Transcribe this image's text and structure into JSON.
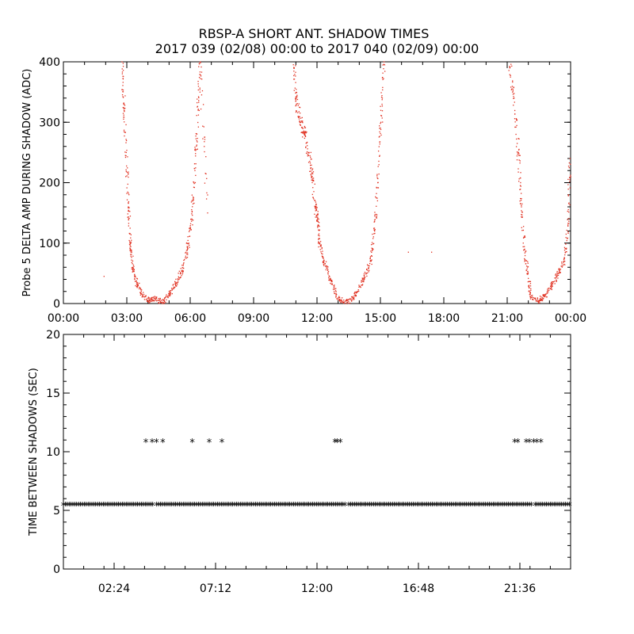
{
  "title_line1": "RBSP-A SHORT ANT. SHADOW TIMES",
  "title_line2": "2017 039 (02/08) 00:00 to 2017 040 (02/09) 00:00",
  "colors": {
    "top_series": "#e03020",
    "bottom_series": "#000000",
    "axis": "#000000"
  },
  "chart_data": [
    {
      "type": "scatter",
      "ylabel": "Probe 5 DELTA AMP DURING SHADOW (ADC)",
      "xlabel": "",
      "xlim_hours": [
        0,
        24
      ],
      "ylim": [
        0,
        400
      ],
      "x_tick_hours": [
        0,
        3,
        6,
        9,
        12,
        15,
        18,
        21,
        24
      ],
      "x_tick_labels": [
        "00:00",
        "03:00",
        "06:00",
        "09:00",
        "12:00",
        "15:00",
        "18:00",
        "21:00",
        "00:00"
      ],
      "y_ticks": [
        0,
        100,
        200,
        300,
        400
      ],
      "y_tick_labels": [
        "0",
        "100",
        "200",
        "300",
        "400"
      ],
      "series_color": "#e03020",
      "description": "Red point clouds forming U-shaped dips during eclipse passes",
      "points_sampled": [
        [
          1.9,
          45
        ],
        [
          2.75,
          400
        ],
        [
          2.85,
          330
        ],
        [
          2.95,
          250
        ],
        [
          3.05,
          160
        ],
        [
          3.15,
          100
        ],
        [
          3.25,
          60
        ],
        [
          3.45,
          35
        ],
        [
          3.7,
          15
        ],
        [
          4.05,
          5
        ],
        [
          4.3,
          8
        ],
        [
          4.7,
          2
        ],
        [
          5.0,
          15
        ],
        [
          5.3,
          35
        ],
        [
          5.6,
          55
        ],
        [
          5.85,
          90
        ],
        [
          6.05,
          140
        ],
        [
          6.2,
          220
        ],
        [
          6.35,
          320
        ],
        [
          6.45,
          400
        ],
        [
          6.8,
          150
        ],
        [
          10.9,
          390
        ],
        [
          11.0,
          330
        ],
        [
          11.2,
          300
        ],
        [
          11.4,
          280
        ],
        [
          11.6,
          250
        ],
        [
          11.75,
          210
        ],
        [
          11.9,
          160
        ],
        [
          12.0,
          140
        ],
        [
          12.1,
          100
        ],
        [
          12.3,
          70
        ],
        [
          12.6,
          40
        ],
        [
          12.9,
          15
        ],
        [
          13.2,
          2
        ],
        [
          13.6,
          5
        ],
        [
          13.9,
          20
        ],
        [
          14.2,
          40
        ],
        [
          14.5,
          70
        ],
        [
          14.7,
          120
        ],
        [
          14.85,
          200
        ],
        [
          15.0,
          300
        ],
        [
          15.15,
          400
        ],
        [
          16.3,
          85
        ],
        [
          17.4,
          85
        ],
        [
          21.1,
          390
        ],
        [
          21.3,
          340
        ],
        [
          21.5,
          250
        ],
        [
          21.65,
          160
        ],
        [
          21.8,
          90
        ],
        [
          21.95,
          50
        ],
        [
          22.1,
          10
        ],
        [
          22.5,
          5
        ],
        [
          22.8,
          15
        ],
        [
          23.1,
          30
        ],
        [
          23.4,
          50
        ],
        [
          23.7,
          70
        ],
        [
          23.85,
          130
        ],
        [
          23.95,
          240
        ]
      ]
    },
    {
      "type": "scatter",
      "ylabel": "TIME BETWEEN SHADOWS (SEC)",
      "xlabel": "",
      "xlim_hours": [
        0,
        24
      ],
      "ylim": [
        0,
        20
      ],
      "x_tick_hours": [
        2.4,
        7.2,
        12.0,
        16.8,
        21.6
      ],
      "x_tick_labels": [
        "02:24",
        "07:12",
        "12:00",
        "16:48",
        "21:36"
      ],
      "y_ticks": [
        0,
        5,
        10,
        15,
        20
      ],
      "y_tick_labels": [
        "0",
        "5",
        "10",
        "15",
        "20"
      ],
      "series_color": "#000000",
      "marker": "*",
      "baseline_value": 5.4,
      "baseline_range_hours": [
        0,
        24
      ],
      "baseline_gaps_hours": [
        4.3,
        13.4,
        22.2
      ],
      "upper_value": 10.8,
      "upper_points_hours": [
        3.9,
        4.2,
        4.4,
        4.7,
        6.1,
        6.9,
        7.5,
        12.85,
        12.95,
        13.1,
        21.35,
        21.5,
        21.9,
        22.05,
        22.25,
        22.4,
        22.6
      ]
    }
  ]
}
